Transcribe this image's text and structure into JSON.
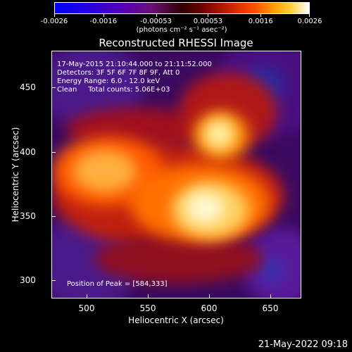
{
  "colorbar": {
    "ticks": [
      {
        "label": "-0.0026",
        "value": -0.0026
      },
      {
        "label": "-0.0016",
        "value": -0.0016
      },
      {
        "label": "-0.00053",
        "value": -0.00053
      },
      {
        "label": "0.00053",
        "value": 0.00053
      },
      {
        "label": "0.0016",
        "value": 0.0016
      },
      {
        "label": "0.0026",
        "value": 0.0026
      }
    ],
    "range": [
      -0.0026,
      0.0026
    ],
    "units": "(photons cm⁻² s⁻¹ asec⁻²)"
  },
  "title": "Reconstructed RHESSI Image",
  "info": {
    "time": "17-May-2015 21:10:44.000 to 21:11:52.000",
    "detectors": "Detectors: 3F 5F 6F 7F 8F 9F, Att 0",
    "energy": "Energy Range: 6.0 - 12.0 keV",
    "clean": "Clean     Total counts: 5.06E+03",
    "peak": "Position of Peak = [584,333]"
  },
  "axes": {
    "xlabel": "Heliocentric X (arcsec)",
    "ylabel": "Heliocentric Y (arcsec)",
    "xticks": [
      "500",
      "550",
      "600",
      "650"
    ],
    "yticks": [
      "450",
      "400",
      "350",
      "300"
    ]
  },
  "timestamp": "21-May-2022 09:18"
}
